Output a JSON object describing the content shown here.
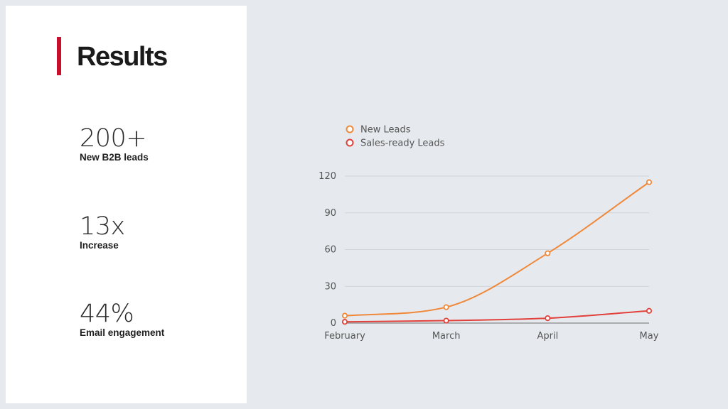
{
  "slide": {
    "title": "Results",
    "accent_color": "#c8102e",
    "stats": [
      {
        "value": "200+",
        "label": "New B2B leads"
      },
      {
        "value": "13x",
        "label": "Increase"
      },
      {
        "value": "44%",
        "label": "Email engagement"
      }
    ]
  },
  "chart_data": {
    "type": "line",
    "categories": [
      "February",
      "March",
      "April",
      "May"
    ],
    "series": [
      {
        "name": "New Leads",
        "values": [
          6,
          13,
          57,
          115
        ],
        "color": "#f0883a"
      },
      {
        "name": "Sales-ready Leads",
        "values": [
          1,
          2,
          4,
          10
        ],
        "color": "#e2413b"
      }
    ],
    "yticks": [
      0,
      30,
      60,
      90,
      120
    ],
    "ylim": [
      0,
      120
    ],
    "grid": true,
    "legend_position": "top-left"
  }
}
